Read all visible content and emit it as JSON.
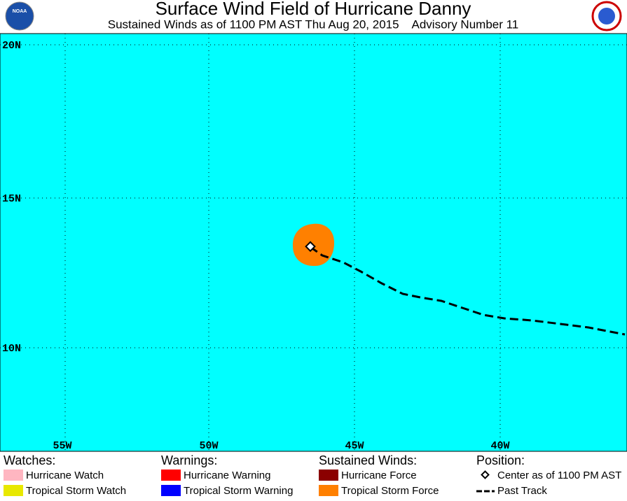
{
  "header": {
    "title": "Surface Wind Field of Hurricane Danny",
    "subtitle": "Sustained Winds as of 1100 PM AST Thu Aug 20, 2015    Advisory Number 11",
    "logo_text": "NOAA"
  },
  "map": {
    "lat_labels": [
      "20N",
      "15N",
      "10N"
    ],
    "lon_labels": [
      "55W",
      "50W",
      "45W",
      "40W"
    ]
  },
  "legend": {
    "watches": {
      "heading": "Watches:",
      "items": [
        "Hurricane Watch",
        "Tropical Storm Watch"
      ]
    },
    "warnings": {
      "heading": "Warnings:",
      "items": [
        "Hurricane Warning",
        "Tropical Storm Warning"
      ]
    },
    "winds": {
      "heading": "Sustained Winds:",
      "items": [
        "Hurricane Force",
        "Tropical Storm Force"
      ]
    },
    "position": {
      "heading": "Position:",
      "items": [
        "Center as of 1100 PM AST",
        "Past Track"
      ]
    }
  }
}
